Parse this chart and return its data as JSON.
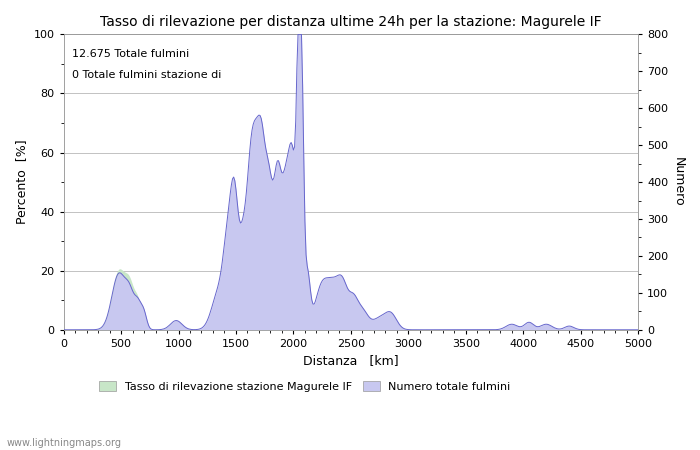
{
  "title": "Tasso di rilevazione per distanza ultime 24h per la stazione: Magurele IF",
  "xlabel": "Distanza   [km]",
  "ylabel_left": "Percento  [%]",
  "ylabel_right": "Numero",
  "annotation_line1": "12.675 Totale fulmini",
  "annotation_line2": "0 Totale fulmini stazione di",
  "legend_label1": "Tasso di rilevazione stazione Magurele IF",
  "legend_label2": "Numero totale fulmini",
  "legend_color1": "#c8e6c8",
  "legend_color2": "#c8c8f0",
  "watermark": "www.lightningmaps.org",
  "xlim": [
    0,
    5000
  ],
  "ylim_left": [
    0,
    100
  ],
  "ylim_right": [
    0,
    800
  ],
  "xticks": [
    0,
    500,
    1000,
    1500,
    2000,
    2500,
    3000,
    3500,
    4000,
    4500,
    5000
  ],
  "yticks_left": [
    0,
    20,
    40,
    60,
    80,
    100
  ],
  "yticks_right": [
    0,
    100,
    200,
    300,
    400,
    500,
    600,
    700,
    800
  ],
  "line_color": "#6666cc",
  "fill_color_counts": "#c8c8f0",
  "fill_color_rate": "#c8e6c8",
  "background_color": "#ffffff",
  "grid_color": "#aaaaaa",
  "figsize": [
    7.0,
    4.5
  ],
  "dpi": 100
}
